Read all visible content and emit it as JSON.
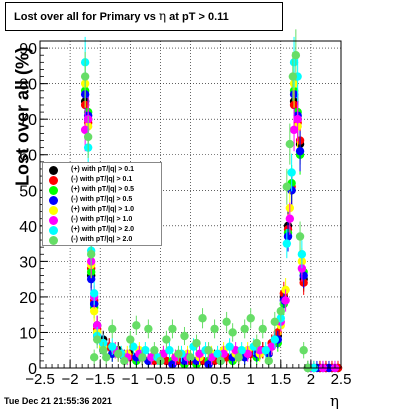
{
  "title": {
    "prefix": "Lost over all for Primary vs",
    "symbol": "η",
    "suffix": "at pT > 0.11"
  },
  "footer_text": "Tue Dec 21 21:55:36 2021",
  "chart_data": {
    "type": "scatter",
    "xlabel": "η",
    "ylabel": "Lost over all (%)",
    "xlim": [
      -2.5,
      2.5
    ],
    "ylim": [
      0,
      92
    ],
    "x_ticks": [
      "−2.5",
      "−2",
      "−1.5",
      "−1",
      "−0.5",
      "0",
      "0.5",
      "1",
      "1.5",
      "2",
      "2.5"
    ],
    "x_tick_values": [
      -2.5,
      -2,
      -1.5,
      -1,
      -0.5,
      0,
      0.5,
      1,
      1.5,
      2,
      2.5
    ],
    "y_ticks": [
      "0",
      "10",
      "20",
      "30",
      "40",
      "50",
      "60",
      "70",
      "80",
      "90"
    ],
    "y_tick_values": [
      0,
      10,
      20,
      30,
      40,
      50,
      60,
      70,
      80,
      90
    ],
    "grid": true,
    "legend_position": "middle-left",
    "series": [
      {
        "name": "(+) with pT/|q| > 0.1",
        "color": "#000000",
        "points": [
          [
            -1.75,
            75
          ],
          [
            -1.7,
            70
          ],
          [
            -1.65,
            26
          ],
          [
            -1.6,
            18
          ],
          [
            -1.55,
            12
          ],
          [
            -1.45,
            8
          ],
          [
            -1.35,
            6
          ],
          [
            -1.2,
            5
          ],
          [
            -1.0,
            4
          ],
          [
            -0.8,
            3
          ],
          [
            -0.6,
            3
          ],
          [
            -0.4,
            2
          ],
          [
            -0.2,
            2
          ],
          [
            0.0,
            2
          ],
          [
            0.2,
            2
          ],
          [
            0.4,
            3
          ],
          [
            0.6,
            3
          ],
          [
            0.8,
            3
          ],
          [
            1.0,
            4
          ],
          [
            1.2,
            5
          ],
          [
            1.35,
            7
          ],
          [
            1.45,
            9
          ],
          [
            1.55,
            20
          ],
          [
            1.62,
            40
          ],
          [
            1.68,
            50
          ],
          [
            1.72,
            75
          ],
          [
            1.78,
            70
          ],
          [
            1.82,
            63
          ],
          [
            1.88,
            25
          ],
          [
            1.95,
            0
          ],
          [
            2.05,
            0
          ],
          [
            2.15,
            0
          ],
          [
            2.25,
            0
          ],
          [
            2.35,
            0
          ],
          [
            2.45,
            0
          ]
        ]
      },
      {
        "name": "(-) with pT/|q| > 0.1",
        "color": "#ff0000",
        "points": [
          [
            -1.75,
            74
          ],
          [
            -1.7,
            69
          ],
          [
            -1.65,
            28
          ],
          [
            -1.6,
            19
          ],
          [
            -1.55,
            11
          ],
          [
            -1.45,
            7
          ],
          [
            -1.35,
            6
          ],
          [
            -1.2,
            4
          ],
          [
            -1.0,
            3
          ],
          [
            -0.8,
            3
          ],
          [
            -0.6,
            2
          ],
          [
            -0.4,
            2
          ],
          [
            -0.2,
            2
          ],
          [
            0.0,
            2
          ],
          [
            0.2,
            2
          ],
          [
            0.4,
            2
          ],
          [
            0.6,
            3
          ],
          [
            0.8,
            3
          ],
          [
            1.0,
            4
          ],
          [
            1.2,
            5
          ],
          [
            1.35,
            7
          ],
          [
            1.45,
            10
          ],
          [
            1.55,
            21
          ],
          [
            1.62,
            39
          ],
          [
            1.68,
            51
          ],
          [
            1.72,
            74
          ],
          [
            1.78,
            69
          ],
          [
            1.82,
            64
          ],
          [
            1.88,
            24
          ],
          [
            1.95,
            0
          ],
          [
            2.05,
            0
          ],
          [
            2.15,
            0
          ],
          [
            2.25,
            0
          ],
          [
            2.35,
            0
          ],
          [
            2.45,
            0
          ]
        ]
      },
      {
        "name": "(+) with pT/|q| > 0.5",
        "color": "#00ff00",
        "points": [
          [
            -1.75,
            78
          ],
          [
            -1.7,
            72
          ],
          [
            -1.65,
            27
          ],
          [
            -1.6,
            17
          ],
          [
            -1.55,
            10
          ],
          [
            -1.45,
            6
          ],
          [
            -1.3,
            4
          ],
          [
            -1.1,
            3
          ],
          [
            -0.9,
            2
          ],
          [
            -0.7,
            2
          ],
          [
            -0.5,
            2
          ],
          [
            -0.3,
            2
          ],
          [
            -0.1,
            1
          ],
          [
            0.1,
            1
          ],
          [
            0.3,
            2
          ],
          [
            0.5,
            2
          ],
          [
            0.7,
            2
          ],
          [
            0.9,
            3
          ],
          [
            1.1,
            3
          ],
          [
            1.3,
            4
          ],
          [
            1.45,
            7
          ],
          [
            1.55,
            18
          ],
          [
            1.62,
            38
          ],
          [
            1.68,
            52
          ],
          [
            1.72,
            78
          ],
          [
            1.78,
            72
          ],
          [
            1.82,
            60
          ],
          [
            1.88,
            27
          ]
        ]
      },
      {
        "name": "(-) with pT/|q| > 0.5",
        "color": "#0000ff",
        "points": [
          [
            -1.75,
            77
          ],
          [
            -1.7,
            71
          ],
          [
            -1.65,
            25
          ],
          [
            -1.6,
            18
          ],
          [
            -1.55,
            9
          ],
          [
            -1.45,
            5
          ],
          [
            -1.3,
            4
          ],
          [
            -1.1,
            3
          ],
          [
            -0.9,
            3
          ],
          [
            -0.7,
            2
          ],
          [
            -0.5,
            2
          ],
          [
            -0.3,
            1
          ],
          [
            -0.1,
            2
          ],
          [
            0.1,
            2
          ],
          [
            0.3,
            1
          ],
          [
            0.5,
            2
          ],
          [
            0.7,
            3
          ],
          [
            0.9,
            3
          ],
          [
            1.1,
            4
          ],
          [
            1.3,
            4
          ],
          [
            1.45,
            8
          ],
          [
            1.55,
            19
          ],
          [
            1.62,
            37
          ],
          [
            1.68,
            50
          ],
          [
            1.72,
            77
          ],
          [
            1.78,
            71
          ],
          [
            1.82,
            61
          ],
          [
            1.88,
            26
          ],
          [
            2.0,
            0
          ],
          [
            2.1,
            0
          ],
          [
            2.2,
            0
          ],
          [
            2.3,
            0
          ],
          [
            2.4,
            0
          ]
        ]
      },
      {
        "name": "(+) with pT/|q| > 1.0",
        "color": "#ffff00",
        "points": [
          [
            -1.75,
            80
          ],
          [
            -1.7,
            68
          ],
          [
            -1.65,
            29
          ],
          [
            -1.6,
            16
          ],
          [
            -1.55,
            10
          ],
          [
            -1.45,
            6
          ],
          [
            -1.25,
            5
          ],
          [
            -1.05,
            4
          ],
          [
            -0.85,
            5
          ],
          [
            -0.65,
            3
          ],
          [
            -0.45,
            4
          ],
          [
            -0.25,
            3
          ],
          [
            -0.05,
            4
          ],
          [
            0.15,
            3
          ],
          [
            0.35,
            4
          ],
          [
            0.55,
            5
          ],
          [
            0.75,
            4
          ],
          [
            0.95,
            5
          ],
          [
            1.15,
            4
          ],
          [
            1.35,
            6
          ],
          [
            1.5,
            12
          ],
          [
            1.58,
            22
          ],
          [
            1.65,
            45
          ],
          [
            1.72,
            80
          ],
          [
            1.78,
            68
          ],
          [
            1.85,
            30
          ],
          [
            1.95,
            0
          ],
          [
            2.05,
            0
          ]
        ]
      },
      {
        "name": "(-) with pT/|q| > 1.0",
        "color": "#ff00ff",
        "points": [
          [
            -1.75,
            67
          ],
          [
            -1.7,
            70
          ],
          [
            -1.65,
            30
          ],
          [
            -1.6,
            20
          ],
          [
            -1.55,
            12
          ],
          [
            -1.45,
            7
          ],
          [
            -1.25,
            5
          ],
          [
            -1.05,
            3
          ],
          [
            -0.85,
            4
          ],
          [
            -0.65,
            3
          ],
          [
            -0.45,
            4
          ],
          [
            -0.25,
            3
          ],
          [
            -0.05,
            3
          ],
          [
            0.15,
            4
          ],
          [
            0.35,
            3
          ],
          [
            0.55,
            4
          ],
          [
            0.75,
            5
          ],
          [
            0.95,
            4
          ],
          [
            1.15,
            5
          ],
          [
            1.35,
            6
          ],
          [
            1.5,
            13
          ],
          [
            1.58,
            19
          ],
          [
            1.65,
            42
          ],
          [
            1.72,
            67
          ],
          [
            1.78,
            70
          ],
          [
            1.85,
            28
          ],
          [
            2.0,
            0
          ],
          [
            2.2,
            0
          ],
          [
            2.4,
            0
          ]
        ]
      },
      {
        "name": "(+) with pT/|q| > 2.0",
        "color": "#00ffff",
        "points": [
          [
            -1.75,
            86
          ],
          [
            -1.7,
            62
          ],
          [
            -1.65,
            33
          ],
          [
            -1.6,
            21
          ],
          [
            -1.55,
            9
          ],
          [
            -1.45,
            7
          ],
          [
            -1.3,
            6
          ],
          [
            -1.15,
            4
          ],
          [
            -0.95,
            6
          ],
          [
            -0.75,
            5
          ],
          [
            -0.55,
            3
          ],
          [
            -0.35,
            5
          ],
          [
            -0.15,
            4
          ],
          [
            0.05,
            6
          ],
          [
            0.25,
            5
          ],
          [
            0.45,
            4
          ],
          [
            0.65,
            6
          ],
          [
            0.85,
            5
          ],
          [
            1.05,
            6
          ],
          [
            1.25,
            5
          ],
          [
            1.4,
            8
          ],
          [
            1.5,
            14
          ],
          [
            1.6,
            35
          ],
          [
            1.68,
            55
          ],
          [
            1.72,
            86
          ],
          [
            1.78,
            82
          ],
          [
            1.85,
            32
          ],
          [
            1.95,
            0
          ],
          [
            2.05,
            0
          ]
        ]
      },
      {
        "name": "(-) with pT/|q| > 2.0",
        "color": "#66dd66",
        "points": [
          [
            -1.75,
            82
          ],
          [
            -1.7,
            65
          ],
          [
            -1.65,
            32
          ],
          [
            -1.6,
            3
          ],
          [
            -1.55,
            8
          ],
          [
            -1.45,
            5
          ],
          [
            -1.4,
            3
          ],
          [
            -1.3,
            11
          ],
          [
            -1.2,
            4
          ],
          [
            -1.1,
            2
          ],
          [
            -1.0,
            8
          ],
          [
            -0.9,
            12
          ],
          [
            -0.8,
            3
          ],
          [
            -0.7,
            11
          ],
          [
            -0.6,
            5
          ],
          [
            -0.5,
            2
          ],
          [
            -0.4,
            8
          ],
          [
            -0.3,
            11
          ],
          [
            -0.2,
            4
          ],
          [
            -0.1,
            9
          ],
          [
            0.0,
            3
          ],
          [
            0.1,
            7
          ],
          [
            0.2,
            14
          ],
          [
            0.3,
            5
          ],
          [
            0.4,
            11
          ],
          [
            0.5,
            2
          ],
          [
            0.6,
            13
          ],
          [
            0.7,
            10
          ],
          [
            0.8,
            3
          ],
          [
            0.9,
            11
          ],
          [
            1.0,
            14
          ],
          [
            1.1,
            7
          ],
          [
            1.2,
            11
          ],
          [
            1.3,
            2
          ],
          [
            1.4,
            13
          ],
          [
            1.5,
            16
          ],
          [
            1.6,
            51
          ],
          [
            1.65,
            63
          ],
          [
            1.7,
            82
          ],
          [
            1.75,
            88
          ],
          [
            1.82,
            37
          ],
          [
            1.88,
            5
          ],
          [
            1.95,
            0
          ]
        ]
      }
    ]
  }
}
